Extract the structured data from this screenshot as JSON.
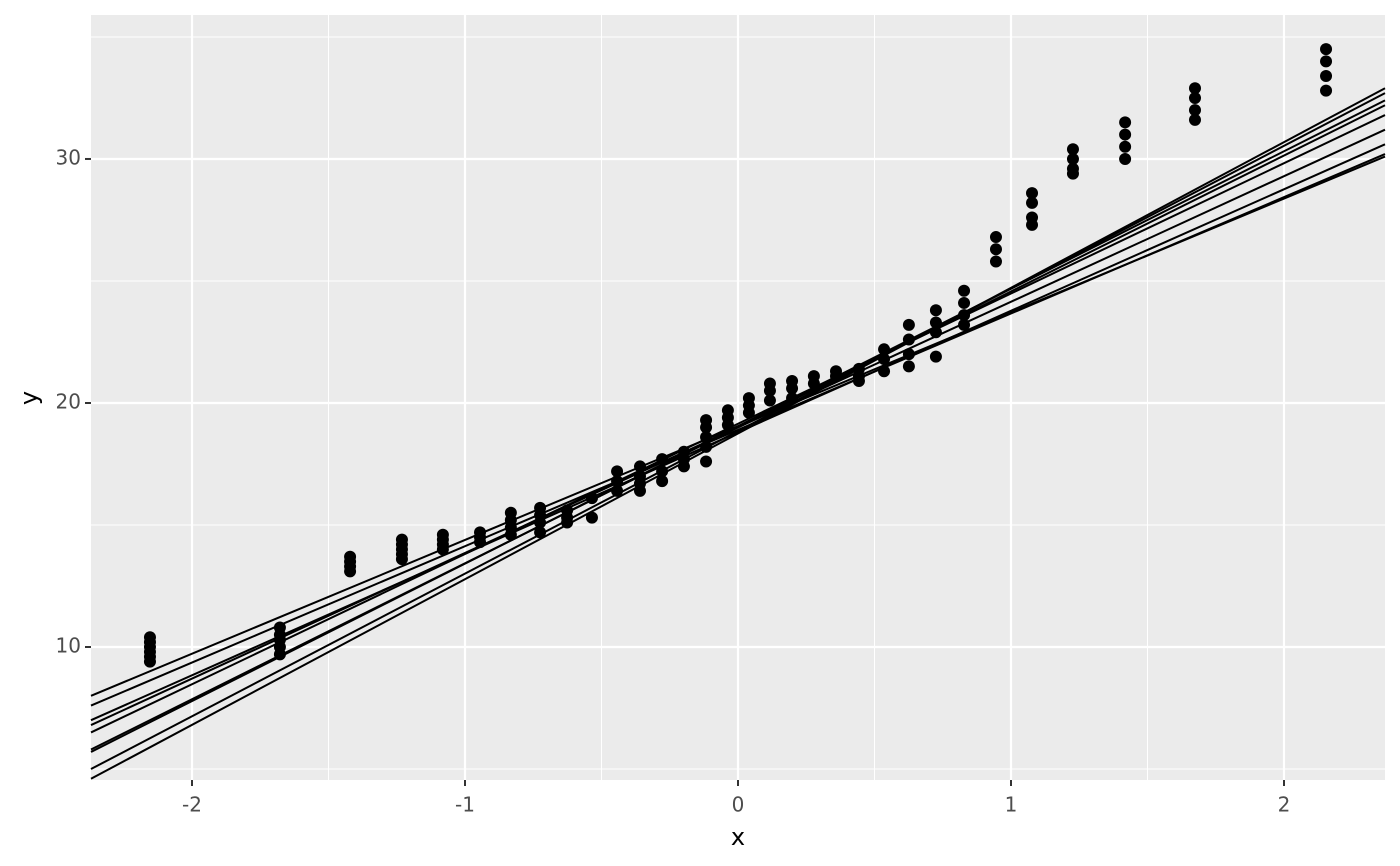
{
  "chart_data": {
    "type": "scatter",
    "x_label": "x",
    "y_label": "y",
    "xlim": [
      -2.37,
      2.37
    ],
    "ylim": [
      4.55,
      35.9
    ],
    "xticks": [
      -2,
      -1,
      0,
      1,
      2
    ],
    "yticks": [
      10,
      20,
      30
    ],
    "xminorticks": [
      -1.5,
      -0.5,
      0.5,
      1.5
    ],
    "yminorticks": [
      5,
      15,
      25,
      35
    ],
    "grid": true,
    "point_color": "#000000",
    "line_color": "#000000",
    "points": {
      "x": [
        -2.154,
        -1.678,
        -1.421,
        -1.231,
        -1.081,
        -0.945,
        -0.832,
        -0.725,
        -0.626,
        -0.535,
        -0.443,
        -0.359,
        -0.278,
        -0.198,
        -0.117,
        -0.037,
        0.04,
        0.117,
        0.198,
        0.278,
        0.359,
        0.443,
        0.535,
        0.626,
        0.725,
        0.828,
        0.945,
        1.077,
        1.227,
        1.418,
        1.674,
        2.154
      ],
      "y": [
        [
          9.4,
          9.6,
          9.8,
          10.0,
          10.2,
          10.4
        ],
        [
          10.8,
          10.5,
          10.3,
          10.0,
          9.7
        ],
        [
          13.7,
          13.5,
          13.3,
          13.1
        ],
        [
          14.4,
          14.2,
          14.0,
          13.8,
          13.6
        ],
        [
          14.6,
          14.4,
          14.2,
          14.0
        ],
        [
          14.7,
          14.5,
          14.3
        ],
        [
          15.5,
          15.2,
          14.9,
          14.6
        ],
        [
          15.7,
          15.4,
          15.1,
          14.7
        ],
        [
          15.6,
          15.3,
          15.1
        ],
        [
          16.1,
          15.3
        ],
        [
          17.2,
          16.8,
          16.4
        ],
        [
          17.4,
          17.0,
          16.7,
          16.4
        ],
        [
          17.7,
          17.2,
          16.8
        ],
        [
          18.0,
          17.7,
          17.4
        ],
        [
          19.3,
          19.0,
          18.6,
          18.2,
          17.6
        ],
        [
          19.7,
          19.4,
          19.1
        ],
        [
          20.2,
          19.9,
          19.6
        ],
        [
          20.8,
          20.5,
          20.1
        ],
        [
          20.9,
          20.6,
          20.2
        ],
        [
          21.1,
          20.8
        ],
        [
          21.3,
          21.1
        ],
        [
          21.4,
          21.1,
          20.9
        ],
        [
          22.2,
          21.8,
          21.3
        ],
        [
          23.2,
          22.6,
          22.0,
          21.5
        ],
        [
          23.8,
          23.3,
          22.9,
          21.9
        ],
        [
          24.6,
          24.1,
          23.6,
          23.2
        ],
        [
          26.8,
          26.3,
          25.8
        ],
        [
          28.6,
          28.2,
          27.6,
          27.3
        ],
        [
          30.4,
          30.0,
          29.6,
          29.4
        ],
        [
          31.5,
          31.0,
          30.5,
          30.0
        ],
        [
          32.9,
          32.5,
          32.0,
          31.6
        ],
        [
          34.5,
          34.0,
          33.4,
          32.8
        ]
      ]
    },
    "lines": [
      {
        "x": [
          -2.37,
          2.37
        ],
        "y": [
          8.0,
          30.1
        ]
      },
      {
        "x": [
          -2.37,
          2.37
        ],
        "y": [
          7.6,
          30.2
        ]
      },
      {
        "x": [
          -2.37,
          2.37
        ],
        "y": [
          7.0,
          30.6
        ]
      },
      {
        "x": [
          -2.37,
          2.37
        ],
        "y": [
          6.8,
          31.2
        ]
      },
      {
        "x": [
          -2.37,
          2.37
        ],
        "y": [
          6.5,
          31.8
        ]
      },
      {
        "x": [
          -2.37,
          2.37
        ],
        "y": [
          5.8,
          32.2
        ]
      },
      {
        "x": [
          -2.37,
          2.37
        ],
        "y": [
          5.7,
          32.4
        ]
      },
      {
        "x": [
          -2.37,
          2.37
        ],
        "y": [
          5.0,
          32.7
        ]
      },
      {
        "x": [
          -2.37,
          2.37
        ],
        "y": [
          4.6,
          32.9
        ]
      }
    ]
  }
}
